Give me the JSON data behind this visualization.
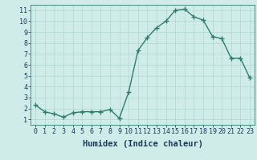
{
  "x": [
    0,
    1,
    2,
    3,
    4,
    5,
    6,
    7,
    8,
    9,
    10,
    11,
    12,
    13,
    14,
    15,
    16,
    17,
    18,
    19,
    20,
    21,
    22,
    23
  ],
  "y": [
    2.3,
    1.7,
    1.5,
    1.2,
    1.6,
    1.7,
    1.7,
    1.7,
    1.9,
    1.1,
    3.5,
    7.3,
    8.5,
    9.4,
    10.0,
    11.0,
    11.1,
    10.4,
    10.1,
    8.6,
    8.4,
    6.6,
    6.6,
    4.8
  ],
  "xlabel": "Humidex (Indice chaleur)",
  "xlim": [
    -0.5,
    23.5
  ],
  "ylim": [
    0.5,
    11.5
  ],
  "xtick_labels": [
    "0",
    "1",
    "2",
    "3",
    "4",
    "5",
    "6",
    "7",
    "8",
    "9",
    "10",
    "11",
    "12",
    "13",
    "14",
    "15",
    "16",
    "17",
    "18",
    "19",
    "20",
    "21",
    "22",
    "23"
  ],
  "ytick_labels": [
    "1",
    "2",
    "3",
    "4",
    "5",
    "6",
    "7",
    "8",
    "9",
    "10",
    "11"
  ],
  "ytick_values": [
    1,
    2,
    3,
    4,
    5,
    6,
    7,
    8,
    9,
    10,
    11
  ],
  "line_color": "#2e7d6e",
  "marker": "+",
  "marker_size": 4,
  "bg_color": "#d0ece8",
  "grid_color": "#b0d8d2",
  "line_width": 1.0,
  "xlabel_fontsize": 7.5,
  "tick_fontsize": 6.0,
  "fig_width": 3.2,
  "fig_height": 2.0,
  "dpi": 100
}
